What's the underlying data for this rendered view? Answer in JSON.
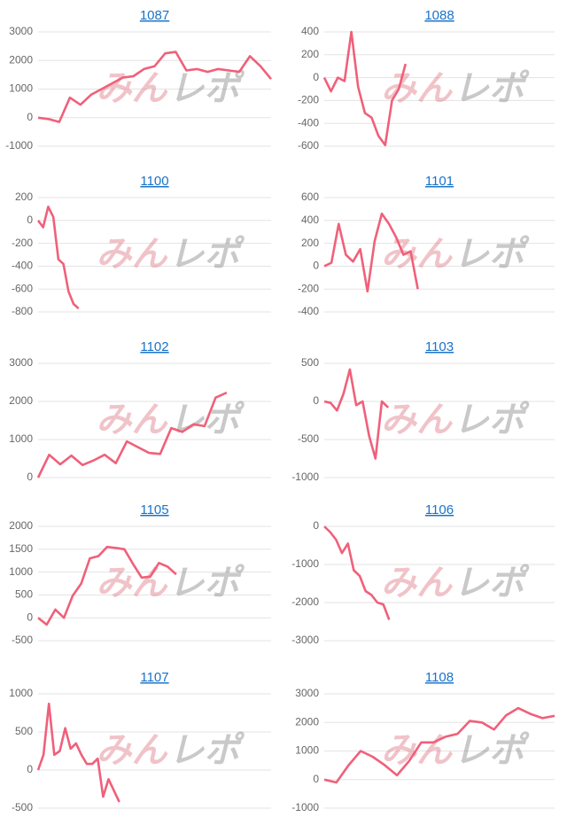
{
  "watermark": [
    "みん",
    "レポ"
  ],
  "chart_data": [
    {
      "type": "line",
      "title": "1087",
      "color": "#f0607a",
      "grid": true,
      "x": [
        0,
        1,
        2,
        3,
        4,
        5,
        6,
        7,
        8,
        9,
        10,
        11,
        12,
        13,
        14,
        15,
        16,
        17,
        18,
        19,
        20,
        21,
        22
      ],
      "xlim": [
        0,
        22
      ],
      "values": [
        0,
        -50,
        -150,
        700,
        450,
        800,
        1000,
        1200,
        1400,
        1450,
        1700,
        1800,
        2250,
        2300,
        1650,
        1700,
        1600,
        1700,
        1650,
        1600,
        2150,
        1800,
        1350
      ],
      "ylim": [
        -1000,
        3000
      ],
      "yticks": [
        -1000,
        0,
        1000,
        2000,
        3000
      ]
    },
    {
      "type": "line",
      "title": "1088",
      "color": "#f0607a",
      "grid": true,
      "x": [
        0,
        1,
        2,
        3,
        4,
        5,
        6,
        7,
        8,
        9,
        10,
        11,
        12
      ],
      "xlim": [
        0,
        34
      ],
      "values": [
        0,
        -120,
        0,
        -30,
        400,
        -80,
        -310,
        -350,
        -510,
        -590,
        -200,
        -100,
        120
      ],
      "ylim": [
        -600,
        400
      ],
      "yticks": [
        -600,
        -400,
        -200,
        0,
        200,
        400
      ]
    },
    {
      "type": "line",
      "title": "1100",
      "color": "#f0607a",
      "grid": true,
      "x": [
        0,
        1,
        2,
        3,
        4,
        5,
        6,
        7,
        8
      ],
      "xlim": [
        0,
        46
      ],
      "values": [
        0,
        -60,
        120,
        30,
        -340,
        -380,
        -620,
        -730,
        -770
      ],
      "ylim": [
        -800,
        200
      ],
      "yticks": [
        -800,
        -600,
        -400,
        -200,
        0,
        200
      ]
    },
    {
      "type": "line",
      "title": "1101",
      "color": "#f0607a",
      "grid": true,
      "x": [
        0,
        1,
        2,
        3,
        4,
        5,
        6,
        7,
        8,
        9,
        10,
        11,
        12,
        13
      ],
      "xlim": [
        0,
        32
      ],
      "values": [
        0,
        30,
        370,
        100,
        40,
        150,
        -220,
        220,
        460,
        370,
        250,
        100,
        130,
        -200
      ],
      "ylim": [
        -400,
        600
      ],
      "yticks": [
        -400,
        -200,
        0,
        200,
        400,
        600
      ]
    },
    {
      "type": "line",
      "title": "1102",
      "color": "#f0607a",
      "grid": true,
      "x": [
        0,
        1,
        2,
        3,
        4,
        5,
        6,
        7,
        8,
        9,
        10,
        11,
        12,
        13,
        14,
        15,
        16,
        17
      ],
      "xlim": [
        0,
        21
      ],
      "values": [
        0,
        600,
        350,
        580,
        330,
        450,
        600,
        380,
        950,
        800,
        650,
        620,
        1300,
        1200,
        1400,
        1350,
        2100,
        2230
      ],
      "ylim": [
        0,
        3000
      ],
      "yticks": [
        0,
        1000,
        2000,
        3000
      ]
    },
    {
      "type": "line",
      "title": "1103",
      "color": "#f0607a",
      "grid": true,
      "x": [
        0,
        1,
        2,
        3,
        4,
        5,
        6,
        7,
        8,
        9,
        10
      ],
      "xlim": [
        0,
        36
      ],
      "values": [
        0,
        -20,
        -120,
        100,
        420,
        -50,
        0,
        -450,
        -750,
        0,
        -80
      ],
      "ylim": [
        -1000,
        500
      ],
      "yticks": [
        -1000,
        -500,
        0,
        500
      ]
    },
    {
      "type": "line",
      "title": "1105",
      "color": "#f0607a",
      "grid": true,
      "x": [
        0,
        1,
        2,
        3,
        4,
        5,
        6,
        7,
        8,
        9,
        10,
        11,
        12,
        13,
        14,
        15,
        16
      ],
      "xlim": [
        0,
        27
      ],
      "values": [
        0,
        -150,
        180,
        0,
        480,
        750,
        1300,
        1350,
        1550,
        1530,
        1500,
        1180,
        880,
        900,
        1200,
        1120,
        950
      ],
      "ylim": [
        -500,
        2000
      ],
      "yticks": [
        -500,
        0,
        500,
        1000,
        1500,
        2000
      ]
    },
    {
      "type": "line",
      "title": "1106",
      "color": "#f0607a",
      "grid": true,
      "x": [
        0,
        1,
        2,
        3,
        4,
        5,
        6,
        7,
        8,
        9,
        10,
        11
      ],
      "xlim": [
        0,
        39
      ],
      "values": [
        0,
        -150,
        -350,
        -700,
        -450,
        -1150,
        -1300,
        -1700,
        -1800,
        -2000,
        -2050,
        -2450
      ],
      "ylim": [
        -3000,
        0
      ],
      "yticks": [
        -3000,
        -2000,
        -1000,
        0
      ]
    },
    {
      "type": "line",
      "title": "1107",
      "color": "#f0607a",
      "grid": true,
      "x": [
        0,
        1,
        2,
        3,
        4,
        5,
        6,
        7,
        8,
        9,
        10,
        11,
        12,
        13,
        14,
        15
      ],
      "xlim": [
        0,
        43
      ],
      "values": [
        0,
        200,
        870,
        200,
        250,
        550,
        280,
        350,
        200,
        80,
        80,
        150,
        -350,
        -120,
        -270,
        -420
      ],
      "ylim": [
        -500,
        1000
      ],
      "yticks": [
        -500,
        0,
        500,
        1000
      ]
    },
    {
      "type": "line",
      "title": "1108",
      "color": "#f0607a",
      "grid": true,
      "x": [
        0,
        1,
        2,
        3,
        4,
        5,
        6,
        7,
        8,
        9,
        10,
        11,
        12,
        13,
        14,
        15,
        16,
        17,
        18,
        19
      ],
      "xlim": [
        0,
        19
      ],
      "values": [
        0,
        -100,
        500,
        1000,
        800,
        500,
        150,
        650,
        1300,
        1300,
        1500,
        1600,
        2050,
        2000,
        1750,
        2250,
        2500,
        2300,
        2150,
        2230
      ],
      "ylim": [
        -1000,
        3000
      ],
      "yticks": [
        -1000,
        0,
        1000,
        2000,
        3000
      ]
    }
  ]
}
